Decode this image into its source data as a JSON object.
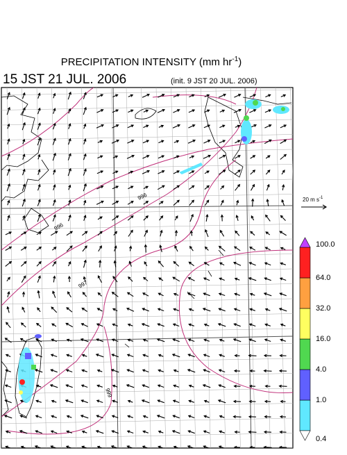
{
  "header": {
    "title": "PRECIPITATION INTENSITY (mm hr",
    "title_exponent": "-1",
    "title_end": ")",
    "valid_time": "15 JST 21 JUL. 2006",
    "init_time": "(init. 9 JST 20 JUL. 2006)"
  },
  "vector_legend": {
    "label": "20 m s",
    "label_exponent": "-1"
  },
  "isobar_labels": [
    "996",
    "996",
    "997",
    "999"
  ],
  "colorbar": {
    "levels": [
      {
        "value": 0.4,
        "label": "0.4"
      },
      {
        "value": 1,
        "label": "1.0"
      },
      {
        "value": 4,
        "label": "4.0"
      },
      {
        "value": 16,
        "label": "16.0"
      },
      {
        "value": 32,
        "label": "32.0"
      },
      {
        "value": 64,
        "label": "64.0"
      },
      {
        "value": 100,
        "label": "100.0"
      }
    ],
    "colors": [
      "#60e8ff",
      "#6060ff",
      "#50d850",
      "#ffff60",
      "#ffa040",
      "#ff2020"
    ],
    "under_color": "#ffffff",
    "over_color": "#c040ff"
  }
}
